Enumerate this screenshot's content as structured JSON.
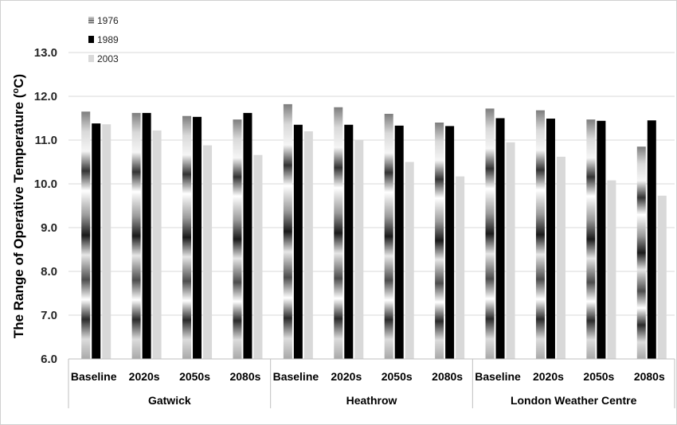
{
  "chart_data": {
    "type": "bar",
    "ylabel": "The Range of Operative Temperature (oC)",
    "ylim": [
      6.0,
      13.0
    ],
    "yticks": [
      "6.0",
      "7.0",
      "8.0",
      "9.0",
      "10.0",
      "11.0",
      "12.0",
      "13.0"
    ],
    "grid": true,
    "legend_position": "top-left",
    "groups": [
      {
        "name": "Gatwick",
        "categories": [
          "Baseline",
          "2020s",
          "2050s",
          "2080s"
        ]
      },
      {
        "name": "Heathrow",
        "categories": [
          "Baseline",
          "2020s",
          "2050s",
          "2080s"
        ]
      },
      {
        "name": "London Weather Centre",
        "categories": [
          "Baseline",
          "2020s",
          "2050s",
          "2080s"
        ]
      }
    ],
    "series": [
      {
        "name": "1976",
        "color": "#9a9a9a",
        "values": [
          11.65,
          11.62,
          11.55,
          11.47,
          11.82,
          11.75,
          11.6,
          11.4,
          11.72,
          11.68,
          11.47,
          10.85
        ]
      },
      {
        "name": "1989",
        "color": "#000000",
        "values": [
          11.38,
          11.62,
          11.53,
          11.62,
          11.35,
          11.35,
          11.33,
          11.32,
          11.5,
          11.49,
          11.44,
          11.45
        ]
      },
      {
        "name": "2003",
        "color": "#d9d9d9",
        "values": [
          11.36,
          11.22,
          10.88,
          10.66,
          11.2,
          11.0,
          10.5,
          10.17,
          10.95,
          10.62,
          10.08,
          9.73
        ]
      }
    ]
  }
}
